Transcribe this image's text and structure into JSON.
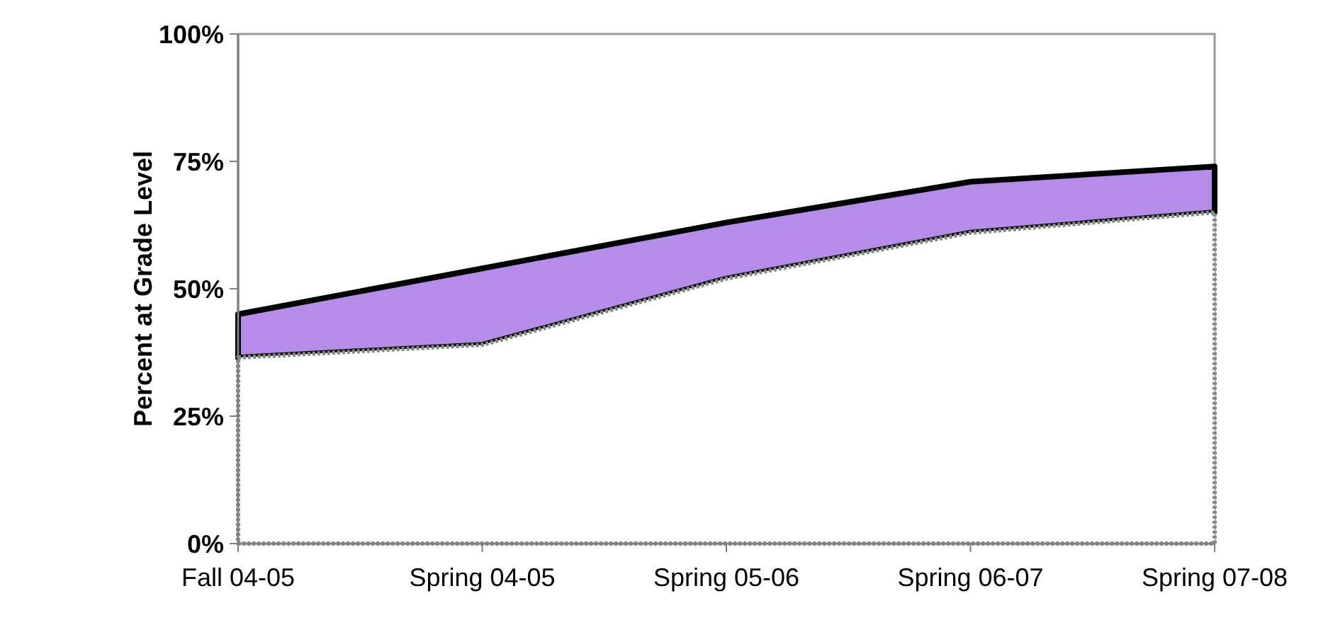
{
  "chart_data": {
    "type": "area",
    "stacked": true,
    "ylabel": "Percent at Grade Level",
    "categories": [
      "Fall 04-05",
      "Spring 04-05",
      "Spring 05-06",
      "Spring 06-07",
      "Spring 07-08"
    ],
    "series": [
      {
        "color": "#ffffff",
        "values": [
          36.5,
          39,
          52,
          61,
          65
        ]
      },
      {
        "color": "#b58ce8",
        "values": [
          8.5,
          15,
          11,
          10,
          9
        ]
      }
    ],
    "ylim": [
      0,
      100
    ],
    "yticks": [
      {
        "value": 0,
        "label": "0%"
      },
      {
        "value": 25,
        "label": "25%"
      },
      {
        "value": 50,
        "label": "50%"
      },
      {
        "value": 75,
        "label": "75%"
      },
      {
        "value": 100,
        "label": "100%"
      }
    ]
  }
}
